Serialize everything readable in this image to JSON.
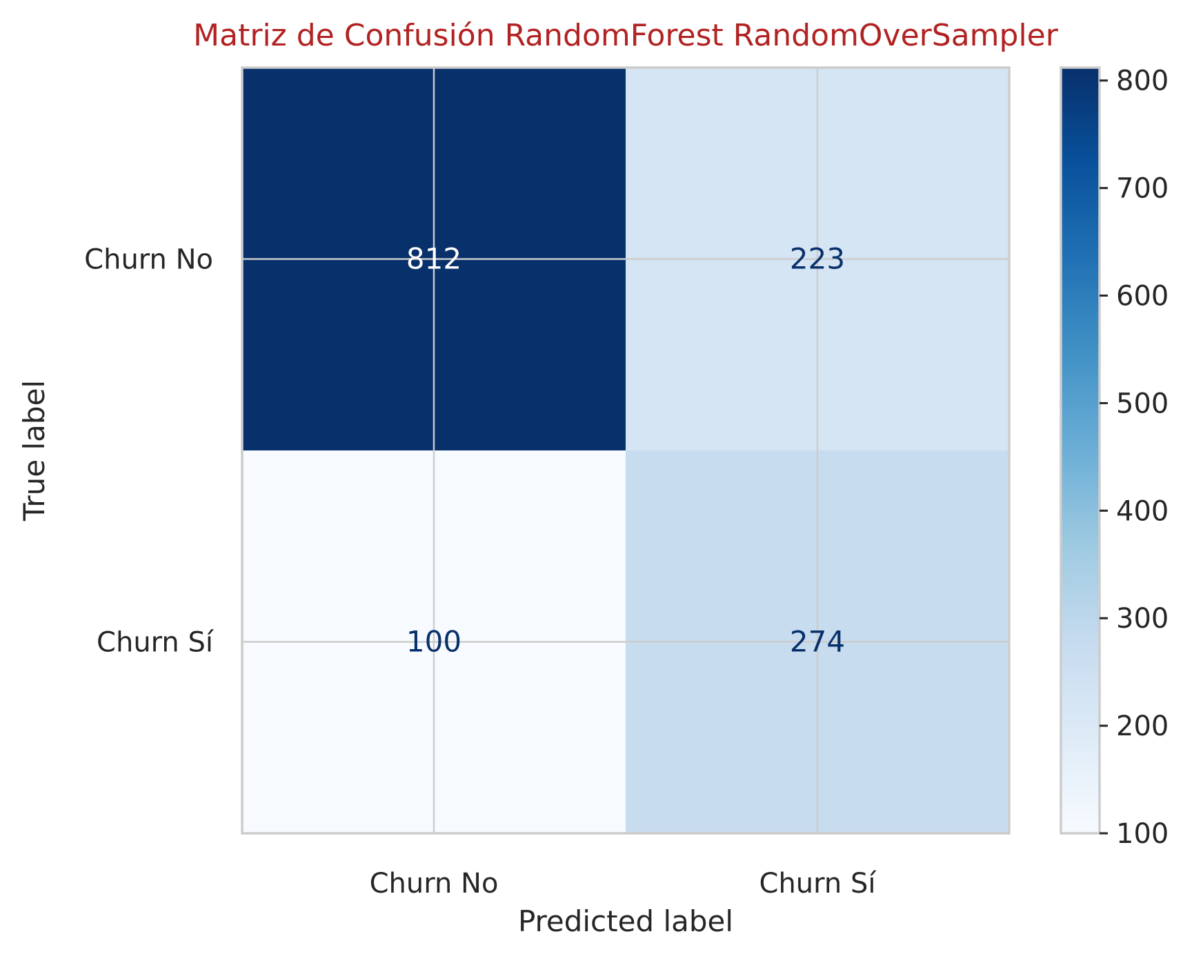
{
  "chart_data": {
    "type": "heatmap",
    "title": "Matriz de Confusión RandomForest RandomOverSampler",
    "xlabel": "Predicted label",
    "ylabel": "True label",
    "x_categories": [
      "Churn No",
      "Churn Sí"
    ],
    "y_categories": [
      "Churn No",
      "Churn Sí"
    ],
    "values": [
      [
        812,
        223
      ],
      [
        100,
        274
      ]
    ],
    "colormap": "Blues",
    "colorbar": {
      "min": 100,
      "max": 812,
      "ticks": [
        100,
        200,
        300,
        400,
        500,
        600,
        700,
        800
      ]
    },
    "grid": true
  },
  "colors": {
    "title": "#b22222",
    "text": "#262626",
    "grid": "#cccccc",
    "cell_text_dark": "#08306b",
    "cell_text_light": "#ffffff"
  }
}
